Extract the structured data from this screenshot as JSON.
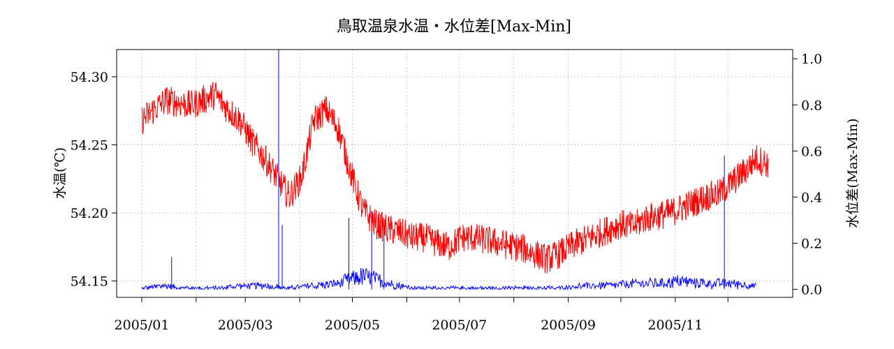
{
  "chart_data": {
    "type": "line",
    "title": "鳥取温泉水温・水位差[Max-Min]",
    "xlabel": "",
    "ylabel_left": "水温(℃)",
    "ylabel_right": "水位差(Max-Min)",
    "x_range": [
      "2005-01-01",
      "2005-12-24"
    ],
    "x_ticks": [
      "2005/01",
      "2005/03",
      "2005/05",
      "2005/07",
      "2005/09",
      "2005/11"
    ],
    "x_tick_dates": [
      "2005-01-01",
      "2005-02-01",
      "2005-03-01",
      "2005-04-01",
      "2005-05-01",
      "2005-06-01",
      "2005-07-01",
      "2005-08-01",
      "2005-09-01",
      "2005-10-01",
      "2005-11-01",
      "2005-12-01"
    ],
    "ylim_left": [
      54.138,
      54.32
    ],
    "yticks_left": [
      "54.15",
      "54.20",
      "54.25",
      "54.30"
    ],
    "ylim_right": [
      -0.035,
      1.04
    ],
    "yticks_right": [
      "0.0",
      "0.2",
      "0.4",
      "0.6",
      "0.8",
      "1.0"
    ],
    "grid": true,
    "series": [
      {
        "axis": "left",
        "color": "#ff0000",
        "dates": [
          "2005-01-01",
          "2005-01-08",
          "2005-01-15",
          "2005-01-22",
          "2005-01-29",
          "2005-02-05",
          "2005-02-12",
          "2005-02-19",
          "2005-02-26",
          "2005-03-05",
          "2005-03-12",
          "2005-03-19",
          "2005-03-26",
          "2005-04-02",
          "2005-04-09",
          "2005-04-16",
          "2005-04-23",
          "2005-04-30",
          "2005-05-07",
          "2005-05-14",
          "2005-05-21",
          "2005-05-28",
          "2005-06-04",
          "2005-06-11",
          "2005-06-18",
          "2005-06-25",
          "2005-07-02",
          "2005-07-09",
          "2005-07-16",
          "2005-07-23",
          "2005-07-30",
          "2005-08-06",
          "2005-08-13",
          "2005-08-20",
          "2005-08-27",
          "2005-09-03",
          "2005-09-10",
          "2005-09-17",
          "2005-09-24",
          "2005-10-01",
          "2005-10-08",
          "2005-10-15",
          "2005-10-22",
          "2005-10-29",
          "2005-11-05",
          "2005-11-12",
          "2005-11-19",
          "2005-11-26",
          "2005-12-03",
          "2005-12-10",
          "2005-12-17",
          "2005-12-24"
        ],
        "values": [
          54.268,
          54.276,
          54.283,
          54.281,
          54.279,
          54.283,
          54.287,
          54.276,
          54.268,
          54.252,
          54.24,
          54.226,
          54.212,
          54.226,
          54.268,
          54.276,
          54.262,
          54.23,
          54.202,
          54.192,
          54.188,
          54.186,
          54.182,
          54.182,
          54.178,
          54.175,
          54.182,
          54.182,
          54.18,
          54.178,
          54.176,
          54.174,
          54.17,
          54.166,
          54.17,
          54.176,
          54.18,
          54.184,
          54.188,
          54.192,
          54.19,
          54.196,
          54.198,
          54.2,
          54.204,
          54.208,
          54.212,
          54.214,
          54.222,
          54.23,
          54.24,
          54.236
        ]
      },
      {
        "axis": "right",
        "color": "#0000ff",
        "dates": [
          "2005-01-01",
          "2005-01-15",
          "2005-01-29",
          "2005-02-12",
          "2005-02-26",
          "2005-03-12",
          "2005-03-26",
          "2005-04-09",
          "2005-04-23",
          "2005-04-30",
          "2005-05-07",
          "2005-05-14",
          "2005-05-21",
          "2005-06-04",
          "2005-06-18",
          "2005-07-02",
          "2005-07-16",
          "2005-07-30",
          "2005-08-13",
          "2005-08-27",
          "2005-09-10",
          "2005-09-24",
          "2005-10-08",
          "2005-10-22",
          "2005-11-05",
          "2005-11-19",
          "2005-12-03",
          "2005-12-17"
        ],
        "values": [
          0.01,
          0.02,
          0.01,
          0.01,
          0.02,
          0.02,
          0.01,
          0.02,
          0.03,
          0.05,
          0.06,
          0.05,
          0.03,
          0.01,
          0.01,
          0.01,
          0.01,
          0.01,
          0.01,
          0.01,
          0.02,
          0.02,
          0.03,
          0.03,
          0.04,
          0.03,
          0.03,
          0.02
        ]
      }
    ]
  }
}
